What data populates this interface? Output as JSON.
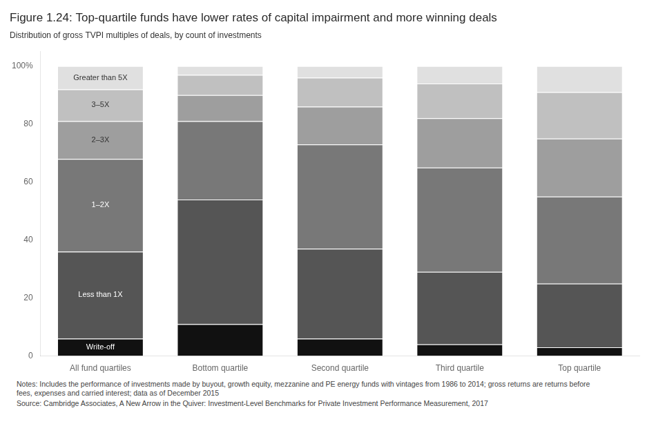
{
  "chart_data": {
    "type": "bar",
    "stacked": true,
    "title": "Figure 1.24: Top-quartile funds have lower rates of capital impairment and more winning deals",
    "subtitle": "Distribution of gross TVPI multiples of deals, by count of investments",
    "categories": [
      "All fund quartiles",
      "Bottom quartile",
      "Second quartile",
      "Third quartile",
      "Top quartile"
    ],
    "series": [
      {
        "name": "Write-off",
        "color": "#111111",
        "values": [
          6,
          11,
          6,
          4,
          3
        ]
      },
      {
        "name": "Less than 1X",
        "color": "#555555",
        "values": [
          30,
          43,
          31,
          25,
          22
        ]
      },
      {
        "name": "1–2X",
        "color": "#787878",
        "values": [
          32,
          27,
          36,
          36,
          30
        ]
      },
      {
        "name": "2–3X",
        "color": "#9e9e9e",
        "values": [
          13,
          9,
          13,
          17,
          20
        ]
      },
      {
        "name": "3–5X",
        "color": "#c0c0c0",
        "values": [
          11,
          7,
          10,
          12,
          16
        ]
      },
      {
        "name": "Greater than 5X",
        "color": "#e0e0e0",
        "values": [
          8,
          3,
          4,
          6,
          9
        ]
      }
    ],
    "ylim": [
      0,
      105
    ],
    "yticks": [
      0,
      20,
      40,
      60,
      80,
      {
        "value": 100,
        "label": "100%"
      }
    ],
    "grid": false,
    "legend": false,
    "annotations": [
      {
        "text": "Write-off",
        "category": "All fund quartiles",
        "series": "Write-off"
      },
      {
        "text": "Less than 1X",
        "category": "All fund quartiles",
        "series": "Less than 1X"
      },
      {
        "text": "1–2X",
        "category": "All fund quartiles",
        "series": "1–2X"
      },
      {
        "text": "2–3X",
        "category": "All fund quartiles",
        "series": "2–3X"
      },
      {
        "text": "3–5X",
        "category": "All fund quartiles",
        "series": "3–5X"
      },
      {
        "text": "Greater than 5X",
        "category": "All fund quartiles",
        "series": "Greater than 5X"
      }
    ],
    "notes": [
      "Notes: Includes the performance of investments made by buyout, growth equity, mezzanine and PE energy funds with vintages from 1986 to 2014; gross returns are returns before",
      "fees, expenses and carried interest; data as of December 2015"
    ],
    "source": "Source: Cambridge Associates, A New Arrow in the Quiver: Investment-Level Benchmarks for Private Investment Performance Measurement, 2017"
  }
}
